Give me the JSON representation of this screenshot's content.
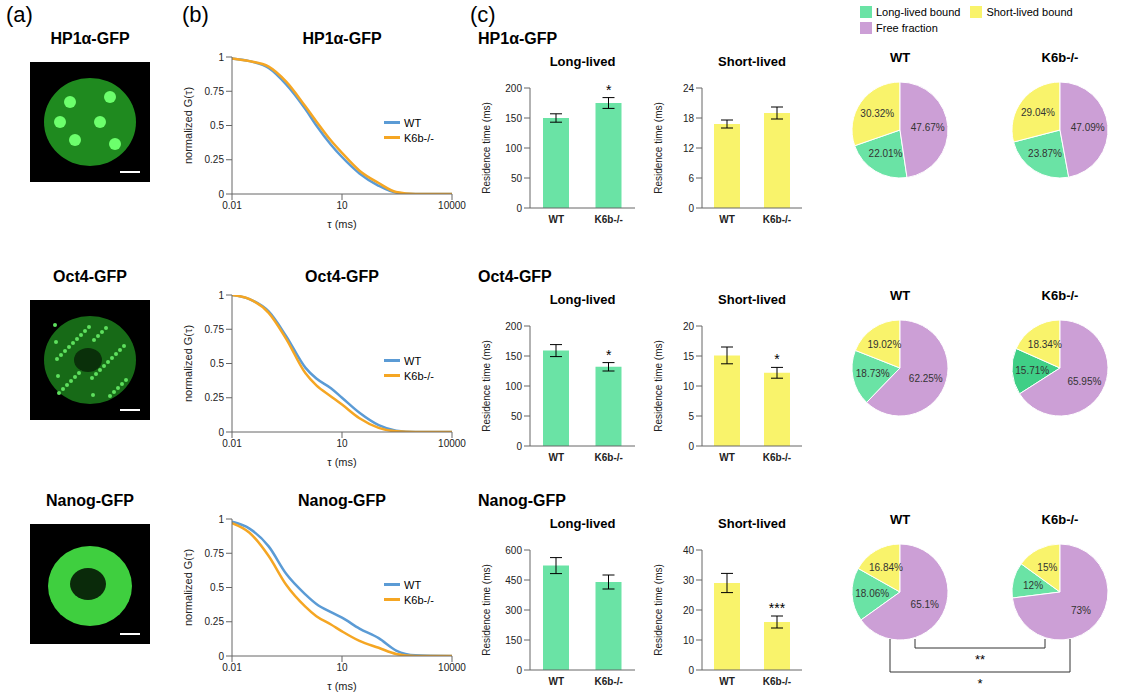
{
  "panel_labels": [
    "(a)",
    "(b)",
    "(c)"
  ],
  "chart_data": [
    {
      "type": "image",
      "title": "HP1α-GFP"
    },
    {
      "type": "line",
      "title": "HP1α-GFP",
      "x": [
        0.01,
        0.03,
        0.1,
        0.3,
        1,
        2,
        5,
        10,
        30,
        100,
        300,
        1000,
        10000
      ],
      "series": [
        {
          "name": "WT",
          "color": "#5b9bd5",
          "values": [
            0.99,
            0.97,
            0.92,
            0.8,
            0.62,
            0.5,
            0.36,
            0.27,
            0.15,
            0.06,
            0.01,
            0,
            0
          ]
        },
        {
          "name": "K6b-/-",
          "color": "#f5a623",
          "values": [
            0.99,
            0.97,
            0.93,
            0.82,
            0.64,
            0.53,
            0.39,
            0.3,
            0.17,
            0.08,
            0.015,
            0,
            0
          ]
        }
      ],
      "xlim": [
        0.01,
        10000
      ],
      "xticks": [
        0.01,
        10,
        10000
      ],
      "ylim": [
        0,
        1
      ],
      "yticks": [
        0,
        0.25,
        0.5,
        0.75,
        1
      ],
      "log": "x",
      "xlabel": "τ (ms)",
      "ylabel": "normalized G(τ)",
      "legend": "right"
    },
    {
      "type": "bar",
      "panel_title": "HP1α-GFP",
      "title": "Long-lived",
      "categories": [
        "WT",
        "K6b-/-"
      ],
      "values": [
        150,
        175
      ],
      "errors": [
        7,
        9
      ],
      "color": "#6ae3a5",
      "ylim": [
        0,
        200
      ],
      "yticks": [
        0,
        50,
        100,
        150,
        200
      ],
      "ylabel": "Residence time (ms)",
      "annotations": [
        {
          "category": "K6b-/-",
          "text": "*"
        }
      ]
    },
    {
      "type": "bar",
      "title": "Short-lived",
      "categories": [
        "WT",
        "K6b-/-"
      ],
      "values": [
        16.8,
        19
      ],
      "errors": [
        0.8,
        1.2
      ],
      "color": "#f9f36b",
      "ylim": [
        0,
        24
      ],
      "yticks": [
        0,
        6,
        12,
        18,
        24
      ],
      "ylabel": "Residence time (ms)"
    },
    {
      "type": "pie",
      "title": "WT",
      "categories": [
        "Long-lived bound",
        "Short-lived bound",
        "Free fraction"
      ],
      "values": [
        22.01,
        30.32,
        47.67
      ],
      "value_labels": [
        "22.01%",
        "30.32%",
        "47.67%"
      ],
      "colors": [
        "#6ae3a5",
        "#f9f36b",
        "#cc9fd6"
      ],
      "data_labels": true,
      "legend": "top-right"
    },
    {
      "type": "pie",
      "title": "K6b-/-",
      "categories": [
        "Long-lived bound",
        "Short-lived bound",
        "Free fraction"
      ],
      "values": [
        23.87,
        29.04,
        47.09
      ],
      "value_labels": [
        "23.87%",
        "29.04%",
        "47.09%"
      ],
      "colors": [
        "#6ae3a5",
        "#f9f36b",
        "#cc9fd6"
      ],
      "data_labels": true
    },
    {
      "type": "image",
      "title": "Oct4-GFP"
    },
    {
      "type": "line",
      "title": "Oct4-GFP",
      "x": [
        0.01,
        0.03,
        0.1,
        0.3,
        1,
        2,
        5,
        10,
        30,
        100,
        300,
        1000,
        10000
      ],
      "series": [
        {
          "name": "WT",
          "color": "#5b9bd5",
          "values": [
            1,
            0.97,
            0.88,
            0.7,
            0.47,
            0.39,
            0.32,
            0.25,
            0.14,
            0.05,
            0.01,
            0,
            0
          ]
        },
        {
          "name": "K6b-/-",
          "color": "#f5a623",
          "values": [
            1,
            0.97,
            0.87,
            0.68,
            0.43,
            0.34,
            0.26,
            0.2,
            0.1,
            0.03,
            0.005,
            0,
            0
          ]
        }
      ],
      "xlim": [
        0.01,
        10000
      ],
      "xticks": [
        0.01,
        10,
        10000
      ],
      "ylim": [
        0,
        1
      ],
      "yticks": [
        0,
        0.25,
        0.5,
        0.75,
        1
      ],
      "log": "x",
      "xlabel": "τ (ms)",
      "ylabel": "normalized G(τ)",
      "legend": "right"
    },
    {
      "type": "bar",
      "panel_title": "Oct4-GFP",
      "title": "Long-lived",
      "categories": [
        "WT",
        "K6b-/-"
      ],
      "values": [
        159,
        132
      ],
      "errors": [
        10,
        7
      ],
      "color": "#6ae3a5",
      "ylim": [
        0,
        200
      ],
      "yticks": [
        0,
        50,
        100,
        150,
        200
      ],
      "ylabel": "Residence time (ms)",
      "annotations": [
        {
          "category": "K6b-/-",
          "text": "*"
        }
      ]
    },
    {
      "type": "bar",
      "title": "Short-lived",
      "categories": [
        "WT",
        "K6b-/-"
      ],
      "values": [
        15.1,
        12.2
      ],
      "errors": [
        1.4,
        0.9
      ],
      "color": "#f9f36b",
      "ylim": [
        0,
        20
      ],
      "yticks": [
        0,
        5,
        10,
        15,
        20
      ],
      "ylabel": "Residence time (ms)",
      "annotations": [
        {
          "category": "K6b-/-",
          "text": "*"
        }
      ]
    },
    {
      "type": "pie",
      "title": "WT",
      "categories": [
        "Long-lived bound",
        "Short-lived bound",
        "Free fraction"
      ],
      "values": [
        18.73,
        19.02,
        62.25
      ],
      "value_labels": [
        "18.73%",
        "19.02%",
        "62.25%"
      ],
      "colors": [
        "#6ae3a5",
        "#f9f36b",
        "#cc9fd6"
      ],
      "data_labels": true
    },
    {
      "type": "pie",
      "title": "K6b-/-",
      "categories": [
        "Long-lived bound",
        "Short-lived bound",
        "Free fraction"
      ],
      "values": [
        15.71,
        18.34,
        65.95
      ],
      "value_labels": [
        "15.71%",
        "18.34%",
        "65.95%"
      ],
      "colors": [
        "#3fcf86",
        "#f9f36b",
        "#cc9fd6"
      ],
      "data_labels": true
    },
    {
      "type": "image",
      "title": "Nanog-GFP"
    },
    {
      "type": "line",
      "title": "Nanog-GFP",
      "x": [
        0.01,
        0.03,
        0.1,
        0.3,
        1,
        2,
        5,
        10,
        30,
        100,
        300,
        1000,
        10000
      ],
      "series": [
        {
          "name": "WT",
          "color": "#5b9bd5",
          "values": [
            0.98,
            0.93,
            0.8,
            0.6,
            0.45,
            0.38,
            0.32,
            0.28,
            0.2,
            0.13,
            0.04,
            0.005,
            0
          ]
        },
        {
          "name": "K6b-/-",
          "color": "#f5a623",
          "values": [
            0.97,
            0.9,
            0.73,
            0.52,
            0.36,
            0.29,
            0.23,
            0.18,
            0.11,
            0.06,
            0.015,
            0,
            0
          ]
        }
      ],
      "xlim": [
        0.01,
        10000
      ],
      "xticks": [
        0.01,
        10,
        10000
      ],
      "ylim": [
        0,
        1
      ],
      "yticks": [
        0,
        0.25,
        0.5,
        0.75,
        1
      ],
      "log": "x",
      "xlabel": "τ (ms)",
      "ylabel": "normalized G(τ)",
      "legend": "right"
    },
    {
      "type": "bar",
      "panel_title": "Nanog-GFP",
      "title": "Long-lived",
      "categories": [
        "WT",
        "K6b-/-"
      ],
      "values": [
        522,
        440
      ],
      "errors": [
        40,
        35
      ],
      "color": "#6ae3a5",
      "ylim": [
        0,
        600
      ],
      "yticks": [
        0,
        150,
        300,
        450,
        600
      ],
      "ylabel": "Residence time (ms)"
    },
    {
      "type": "bar",
      "title": "Short-lived",
      "categories": [
        "WT",
        "K6b-/-"
      ],
      "values": [
        29,
        16
      ],
      "errors": [
        3.2,
        2
      ],
      "color": "#f9f36b",
      "ylim": [
        0,
        40
      ],
      "yticks": [
        0,
        10,
        20,
        30,
        40
      ],
      "ylabel": "Residence time (ms)",
      "annotations": [
        {
          "category": "K6b-/-",
          "text": "***"
        }
      ]
    },
    {
      "type": "pie",
      "title": "WT",
      "categories": [
        "Long-lived bound",
        "Short-lived bound",
        "Free fraction"
      ],
      "values": [
        18.06,
        16.84,
        65.1
      ],
      "value_labels": [
        "18.06%",
        "16.84%",
        "65.1%"
      ],
      "colors": [
        "#6ae3a5",
        "#f9f36b",
        "#cc9fd6"
      ],
      "data_labels": true
    },
    {
      "type": "pie",
      "title": "K6b-/-",
      "categories": [
        "Long-lived bound",
        "Short-lived bound",
        "Free fraction"
      ],
      "values": [
        12,
        15,
        73
      ],
      "value_labels": [
        "12%",
        "15%",
        "73%"
      ],
      "colors": [
        "#6ae3a5",
        "#f9f36b",
        "#cc9fd6"
      ],
      "data_labels": true,
      "annotations": [
        "**",
        "*"
      ]
    }
  ]
}
